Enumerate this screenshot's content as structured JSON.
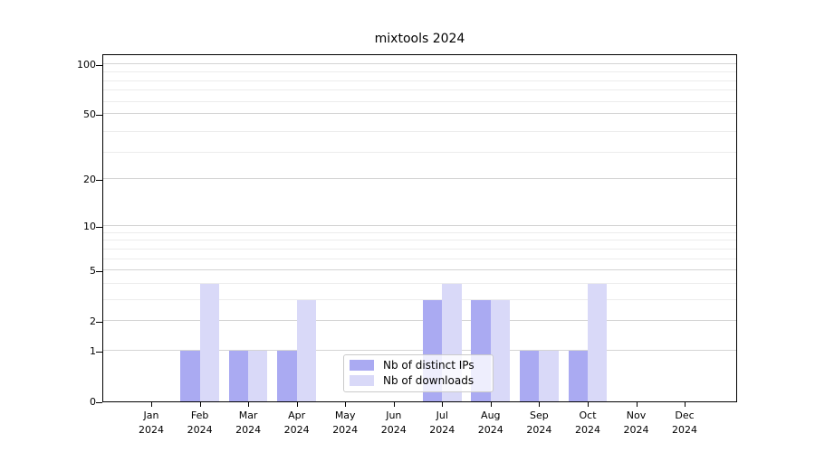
{
  "chart_data": {
    "type": "bar",
    "title": "mixtools 2024",
    "categories": [
      "Jan",
      "Feb",
      "Mar",
      "Apr",
      "May",
      "Jun",
      "Jul",
      "Aug",
      "Sep",
      "Oct",
      "Nov",
      "Dec"
    ],
    "year_label": "2024",
    "series": [
      {
        "name": "Nb of distinct IPs",
        "color": "#aaaaf2",
        "values": [
          0,
          1,
          1,
          1,
          0,
          0,
          3,
          3,
          1,
          1,
          0,
          0
        ]
      },
      {
        "name": "Nb of downloads",
        "color": "#d9d9f8",
        "values": [
          0,
          4,
          1,
          3,
          0,
          0,
          4,
          3,
          1,
          4,
          0,
          0
        ]
      }
    ],
    "y_axis": {
      "scale": "log10(1+x)",
      "ticks": [
        0,
        1,
        2,
        5,
        10,
        20,
        50,
        100
      ],
      "minor_gridlines": [
        3,
        4,
        6,
        7,
        8,
        9,
        29,
        39,
        59,
        69,
        79,
        89
      ],
      "ylim": [
        0,
        113
      ]
    },
    "xlabel": "",
    "ylabel": "",
    "grid": true,
    "legend_position": "lower center"
  }
}
